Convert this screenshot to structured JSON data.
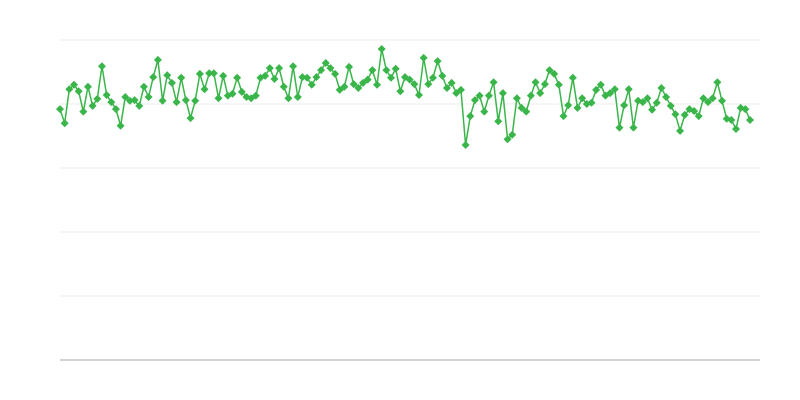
{
  "chart_data": {
    "type": "line",
    "color": "#3ab54a",
    "grid": true,
    "ylim": [
      0,
      5
    ],
    "yticks": [
      0,
      1,
      2,
      3,
      4,
      5
    ],
    "values": [
      3.92,
      3.7,
      4.23,
      4.3,
      4.2,
      3.88,
      4.27,
      3.97,
      4.08,
      4.59,
      4.14,
      4.03,
      3.92,
      3.66,
      4.11,
      4.05,
      4.06,
      3.97,
      4.27,
      4.11,
      4.42,
      4.69,
      4.05,
      4.45,
      4.33,
      4.03,
      4.41,
      4.06,
      3.78,
      4.05,
      4.47,
      4.23,
      4.48,
      4.48,
      4.09,
      4.44,
      4.13,
      4.16,
      4.41,
      4.19,
      4.11,
      4.09,
      4.13,
      4.41,
      4.44,
      4.56,
      4.39,
      4.56,
      4.27,
      4.09,
      4.59,
      4.11,
      4.42,
      4.41,
      4.3,
      4.42,
      4.53,
      4.64,
      4.56,
      4.47,
      4.22,
      4.27,
      4.58,
      4.31,
      4.25,
      4.33,
      4.38,
      4.53,
      4.3,
      4.86,
      4.53,
      4.41,
      4.55,
      4.2,
      4.42,
      4.38,
      4.31,
      4.14,
      4.72,
      4.31,
      4.41,
      4.67,
      4.44,
      4.25,
      4.33,
      4.17,
      4.22,
      3.36,
      3.81,
      4.06,
      4.13,
      3.88,
      4.13,
      4.34,
      3.73,
      4.17,
      3.45,
      3.52,
      4.09,
      3.94,
      3.88,
      4.13,
      4.34,
      4.17,
      4.31,
      4.53,
      4.47,
      4.3,
      3.81,
      3.98,
      4.41,
      3.94,
      4.09,
      4.0,
      4.02,
      4.22,
      4.3,
      4.13,
      4.17,
      4.23,
      3.63,
      3.98,
      4.23,
      3.63,
      4.05,
      4.03,
      4.09,
      3.91,
      4.02,
      4.25,
      4.11,
      3.97,
      3.84,
      3.58,
      3.83,
      3.92,
      3.89,
      3.81,
      4.09,
      4.03,
      4.09,
      4.34,
      4.05,
      3.77,
      3.75,
      3.61,
      3.94,
      3.92,
      3.75
    ]
  }
}
